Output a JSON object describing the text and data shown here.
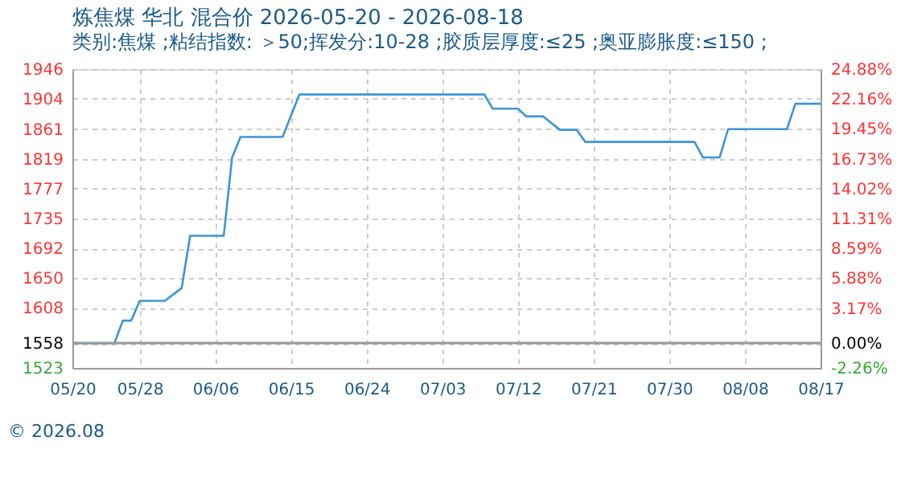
{
  "chart_data": {
    "type": "line",
    "title": "炼焦煤 华北 混合价 2026-05-20 - 2026-08-18",
    "subtitle": "类别:焦煤 ;粘结指数: ＞50;挥发分:10-28 ;胶质层厚度:≤25 ;奥亚膨胀度:≤150 ;",
    "x": [
      "2026-05-20",
      "2026-05-25",
      "2026-05-26",
      "2026-05-27",
      "2026-05-28",
      "2026-05-31",
      "2026-06-02",
      "2026-06-03",
      "2026-06-07",
      "2026-06-08",
      "2026-06-09",
      "2026-06-14",
      "2026-06-16",
      "2026-07-08",
      "2026-07-09",
      "2026-07-12",
      "2026-07-13",
      "2026-07-15",
      "2026-07-17",
      "2026-07-19",
      "2026-07-20",
      "2026-08-02",
      "2026-08-03",
      "2026-08-05",
      "2026-08-06",
      "2026-08-13",
      "2026-08-14",
      "2026-08-17"
    ],
    "series": [
      {
        "color": "#3d95d6",
        "values": [
          1558,
          1558,
          1590,
          1590,
          1618,
          1618,
          1636,
          1710,
          1710,
          1821,
          1850,
          1850,
          1910,
          1910,
          1890,
          1890,
          1879,
          1879,
          1860,
          1860,
          1843,
          1843,
          1821,
          1821,
          1861,
          1861,
          1897,
          1897
        ]
      }
    ],
    "xlim": [
      "2026-05-20",
      "2026-08-17"
    ],
    "xticks": [
      {
        "value": "2026-05-20",
        "label": "05/20"
      },
      {
        "value": "2026-05-28",
        "label": "05/28"
      },
      {
        "value": "2026-06-06",
        "label": "06/06"
      },
      {
        "value": "2026-06-15",
        "label": "06/15"
      },
      {
        "value": "2026-06-24",
        "label": "06/24"
      },
      {
        "value": "2026-07-03",
        "label": "07/03"
      },
      {
        "value": "2026-07-12",
        "label": "07/12"
      },
      {
        "value": "2026-07-21",
        "label": "07/21"
      },
      {
        "value": "2026-07-30",
        "label": "07/30"
      },
      {
        "value": "2026-08-08",
        "label": "08/08"
      },
      {
        "value": "2026-08-17",
        "label": "08/17"
      }
    ],
    "ylim": [
      1523,
      1946
    ],
    "yticks": [
      1523,
      1558,
      1608,
      1650,
      1692,
      1735,
      1777,
      1819,
      1861,
      1904,
      1946
    ],
    "y2lim": [
      -2.26,
      24.88
    ],
    "y2ticks": [
      {
        "value": -2.26,
        "label": "-2.26%"
      },
      {
        "value": 0.0,
        "label": "0.00%"
      },
      {
        "value": 3.17,
        "label": "3.17%"
      },
      {
        "value": 5.88,
        "label": "5.88%"
      },
      {
        "value": 8.59,
        "label": "8.59%"
      },
      {
        "value": 11.31,
        "label": "11.31%"
      },
      {
        "value": 14.02,
        "label": "14.02%"
      },
      {
        "value": 16.73,
        "label": "16.73%"
      },
      {
        "value": 19.45,
        "label": "19.45%"
      },
      {
        "value": 22.16,
        "label": "22.16%"
      },
      {
        "value": 24.88,
        "label": "24.88%"
      }
    ],
    "ref_lines": [
      {
        "axis": "y2",
        "value": 0.0,
        "color": "#999999"
      }
    ],
    "grid": true,
    "marker": "none",
    "line_style": "solid",
    "annotations": [
      "© 2026.08"
    ]
  }
}
